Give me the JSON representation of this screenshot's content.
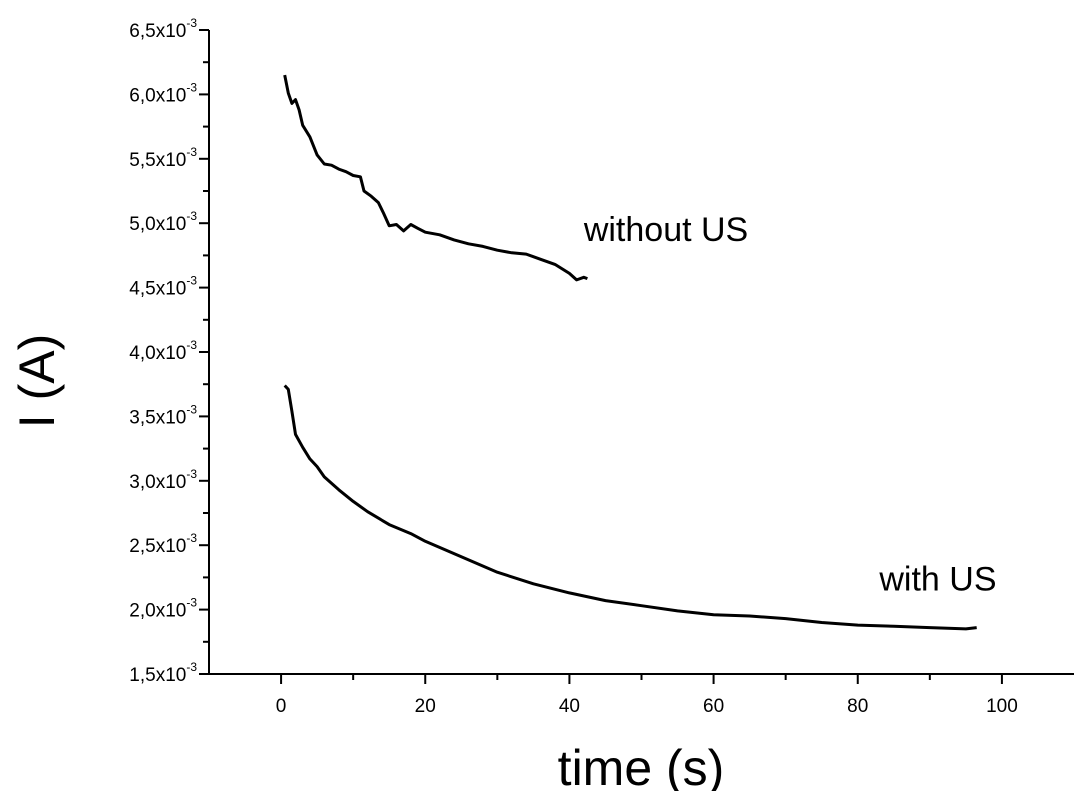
{
  "chart_data": {
    "type": "line",
    "xlabel": "time (s)",
    "ylabel": "I (A)",
    "xlim": [
      -10,
      110
    ],
    "ylim": [
      0.0015,
      0.0065
    ],
    "x_ticks": [
      0,
      20,
      40,
      60,
      80,
      100
    ],
    "x_tick_labels": [
      "0",
      "20",
      "40",
      "60",
      "80",
      "100"
    ],
    "y_ticks": [
      0.0015,
      0.002,
      0.0025,
      0.003,
      0.0035,
      0.004,
      0.0045,
      0.005,
      0.0055,
      0.006,
      0.0065
    ],
    "y_tick_labels": [
      {
        "mantissa": "1,5x10",
        "exponent": "-3"
      },
      {
        "mantissa": "2,0x10",
        "exponent": "-3"
      },
      {
        "mantissa": "2,5x10",
        "exponent": "-3"
      },
      {
        "mantissa": "3,0x10",
        "exponent": "-3"
      },
      {
        "mantissa": "3,5x10",
        "exponent": "-3"
      },
      {
        "mantissa": "4,0x10",
        "exponent": "-3"
      },
      {
        "mantissa": "4,5x10",
        "exponent": "-3"
      },
      {
        "mantissa": "5,0x10",
        "exponent": "-3"
      },
      {
        "mantissa": "5,5x10",
        "exponent": "-3"
      },
      {
        "mantissa": "6,0x10",
        "exponent": "-3"
      },
      {
        "mantissa": "6,5x10",
        "exponent": "-3"
      }
    ],
    "grid": false,
    "series": [
      {
        "name": "without US",
        "color": "#000000",
        "x": [
          0.5,
          1.0,
          1.5,
          2.0,
          2.5,
          3.0,
          4.0,
          5.0,
          6.0,
          7.0,
          8.0,
          9.0,
          10.0,
          11.0,
          11.5,
          12.5,
          13.5,
          14.2,
          15.0,
          16.0,
          17.0,
          18.0,
          19.0,
          20.0,
          22.0,
          24.0,
          26.0,
          28.0,
          30.0,
          32.0,
          34.0,
          36.0,
          38.0,
          40.0,
          41.0,
          42.0,
          42.5
        ],
        "y": [
          0.00615,
          0.00601,
          0.00593,
          0.00596,
          0.00588,
          0.00576,
          0.00567,
          0.00553,
          0.00546,
          0.00545,
          0.00542,
          0.0054,
          0.00537,
          0.00536,
          0.00525,
          0.00521,
          0.00516,
          0.00508,
          0.00498,
          0.00499,
          0.00494,
          0.00499,
          0.00496,
          0.00493,
          0.00491,
          0.00487,
          0.00484,
          0.00482,
          0.00479,
          0.00477,
          0.00476,
          0.00472,
          0.00468,
          0.00461,
          0.00456,
          0.00458,
          0.00457
        ]
      },
      {
        "name": "with US",
        "color": "#000000",
        "x": [
          0.5,
          1.0,
          1.5,
          2.0,
          3.0,
          4.0,
          5.0,
          6.0,
          8.0,
          10.0,
          12.0,
          15.0,
          18.0,
          20.0,
          25.0,
          30.0,
          35.0,
          40.0,
          45.0,
          50.0,
          55.0,
          60.0,
          65.0,
          70.0,
          75.0,
          80.0,
          85.0,
          90.0,
          95.0,
          96.5
        ],
        "y": [
          0.00374,
          0.00371,
          0.00354,
          0.00336,
          0.00326,
          0.00317,
          0.00311,
          0.00303,
          0.00293,
          0.00284,
          0.00276,
          0.00266,
          0.00259,
          0.00253,
          0.00241,
          0.00229,
          0.0022,
          0.00213,
          0.00207,
          0.00203,
          0.00199,
          0.00196,
          0.00195,
          0.00193,
          0.0019,
          0.00188,
          0.00187,
          0.00186,
          0.00185,
          0.00186
        ]
      }
    ],
    "annotations": [
      {
        "text": "without US",
        "x": 42,
        "y": 0.00486
      },
      {
        "text": "with US",
        "x": 83,
        "y": 0.00215
      }
    ]
  }
}
